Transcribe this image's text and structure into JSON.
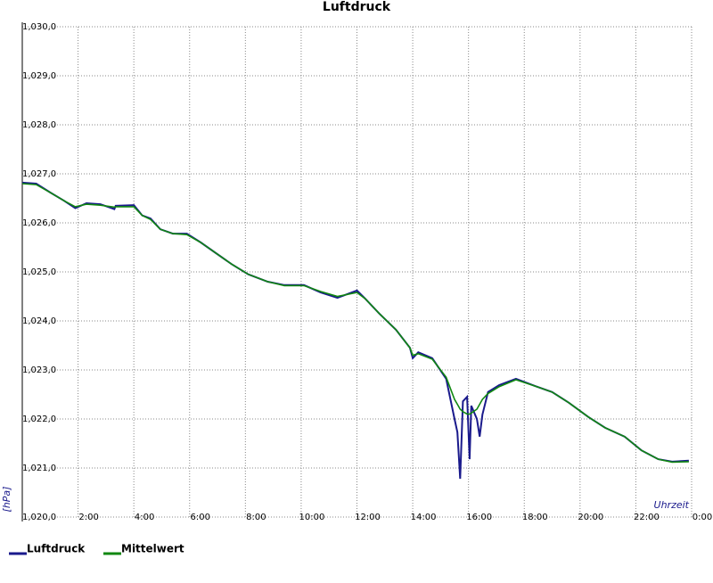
{
  "chart_data": {
    "type": "line",
    "title": "Luftdruck",
    "ylabel": "[hPa]",
    "xlabel": "Uhrzeit",
    "x": [
      0,
      0.5,
      1.0,
      1.5,
      1.9,
      2.3,
      2.8,
      3.3,
      3.35,
      4.0,
      4.3,
      4.6,
      4.95,
      5.4,
      5.9,
      6.4,
      6.9,
      7.5,
      8.1,
      8.8,
      9.4,
      10.1,
      10.7,
      11.3,
      12.0,
      12.3,
      12.8,
      13.4,
      13.9,
      14.0,
      14.2,
      14.7,
      15.2,
      15.5,
      15.6,
      15.7,
      15.8,
      15.95,
      16.04,
      16.1,
      16.3,
      16.4,
      16.5,
      16.7,
      17.1,
      17.7,
      18.4,
      19.0,
      19.6,
      20.3,
      20.9,
      21.6,
      22.2,
      22.8,
      23.3,
      23.9
    ],
    "series": [
      {
        "name": "Luftdruck",
        "color": "#1a1a8c",
        "values": [
          1026.82,
          1026.8,
          1026.62,
          1026.45,
          1026.3,
          1026.4,
          1026.38,
          1026.28,
          1026.35,
          1026.36,
          1026.15,
          1026.09,
          1025.87,
          1025.78,
          1025.78,
          1025.6,
          1025.4,
          1025.16,
          1024.95,
          1024.8,
          1024.73,
          1024.73,
          1024.58,
          1024.47,
          1024.62,
          1024.45,
          1024.15,
          1023.82,
          1023.45,
          1023.24,
          1023.36,
          1023.24,
          1022.82,
          1022.0,
          1021.73,
          1020.78,
          1022.36,
          1022.45,
          1021.18,
          1022.27,
          1022.0,
          1021.64,
          1022.09,
          1022.55,
          1022.69,
          1022.82,
          1022.67,
          1022.55,
          1022.33,
          1022.04,
          1021.82,
          1021.64,
          1021.36,
          1021.18,
          1021.13,
          1021.15
        ]
      },
      {
        "name": "Mittelwert",
        "color": "#118811",
        "values": [
          1026.8,
          1026.78,
          1026.62,
          1026.45,
          1026.33,
          1026.38,
          1026.36,
          1026.32,
          1026.33,
          1026.33,
          1026.15,
          1026.07,
          1025.87,
          1025.78,
          1025.76,
          1025.6,
          1025.4,
          1025.16,
          1024.95,
          1024.8,
          1024.72,
          1024.72,
          1024.6,
          1024.5,
          1024.58,
          1024.45,
          1024.15,
          1023.82,
          1023.45,
          1023.3,
          1023.33,
          1023.22,
          1022.85,
          1022.4,
          1022.3,
          1022.2,
          1022.15,
          1022.1,
          1022.1,
          1022.12,
          1022.2,
          1022.3,
          1022.4,
          1022.52,
          1022.66,
          1022.8,
          1022.67,
          1022.55,
          1022.33,
          1022.04,
          1021.82,
          1021.64,
          1021.36,
          1021.18,
          1021.12,
          1021.13
        ]
      }
    ],
    "xlim": [
      0,
      24
    ],
    "xticks": [
      {
        "value": 2,
        "label": "2:00"
      },
      {
        "value": 4,
        "label": "4:00"
      },
      {
        "value": 6,
        "label": "6:00"
      },
      {
        "value": 8,
        "label": "8:00"
      },
      {
        "value": 10,
        "label": "10:00"
      },
      {
        "value": 12,
        "label": "12:00"
      },
      {
        "value": 14,
        "label": "14:00"
      },
      {
        "value": 16,
        "label": "16:00"
      },
      {
        "value": 18,
        "label": "18:00"
      },
      {
        "value": 20,
        "label": "20:00"
      },
      {
        "value": 22,
        "label": "22:00"
      },
      {
        "value": 24,
        "label": "0:00"
      }
    ],
    "ylim": [
      1020,
      1030
    ],
    "yticks": [
      {
        "value": 1020,
        "label": "1,020,0"
      },
      {
        "value": 1021,
        "label": "1,021,0"
      },
      {
        "value": 1022,
        "label": "1,022,0"
      },
      {
        "value": 1023,
        "label": "1,023,0"
      },
      {
        "value": 1024,
        "label": "1,024,0"
      },
      {
        "value": 1025,
        "label": "1,025,0"
      },
      {
        "value": 1026,
        "label": "1,026,0"
      },
      {
        "value": 1027,
        "label": "1,027,0"
      },
      {
        "value": 1028,
        "label": "1,028,0"
      },
      {
        "value": 1029,
        "label": "1,029,0"
      },
      {
        "value": 1030,
        "label": "1,030,0"
      }
    ],
    "grid": true
  }
}
